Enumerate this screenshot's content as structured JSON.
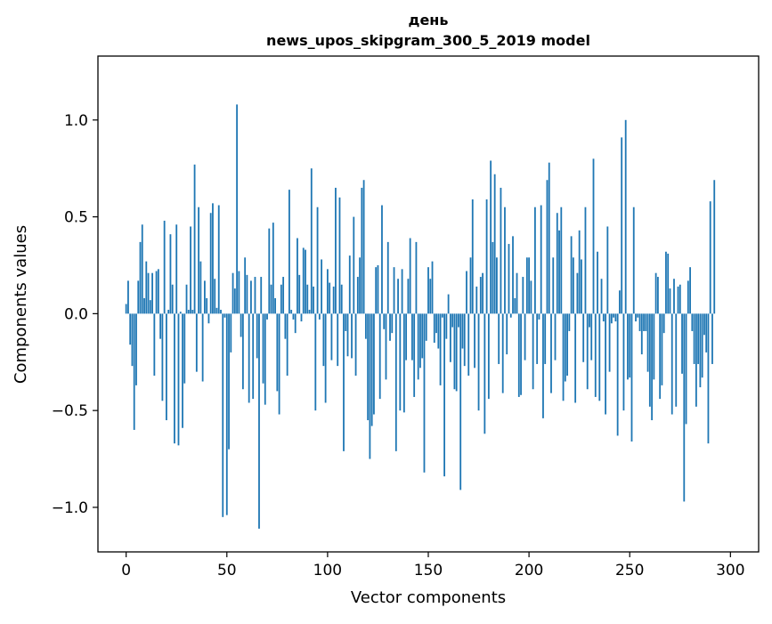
{
  "chart_data": {
    "type": "bar",
    "title": "день",
    "subtitle": "news_upos_skipgram_300_5_2019 model",
    "xlabel": "Vector components",
    "ylabel": "Components values",
    "xlim": [
      -14,
      314
    ],
    "ylim": [
      -1.23,
      1.33
    ],
    "xticks": [
      0,
      50,
      100,
      150,
      200,
      250,
      300
    ],
    "xtick_labels": [
      "0",
      "50",
      "100",
      "150",
      "200",
      "250",
      "300"
    ],
    "yticks": [
      1.0,
      0.5,
      0.0,
      -0.5,
      -1.0
    ],
    "ytick_labels": [
      "1.0",
      "0.5",
      "0.0",
      "−0.5",
      "−1.0"
    ],
    "grid": false,
    "bar_color": "#1f77b4",
    "x_start": 0,
    "values": [
      0.05,
      0.17,
      -0.16,
      -0.27,
      -0.6,
      -0.37,
      0.17,
      0.37,
      0.46,
      0.08,
      0.27,
      0.21,
      0.07,
      0.21,
      -0.32,
      0.22,
      0.23,
      -0.13,
      -0.45,
      0.48,
      -0.55,
      0.02,
      0.41,
      0.15,
      -0.67,
      0.46,
      -0.68,
      0.01,
      -0.59,
      -0.36,
      0.15,
      0.02,
      0.45,
      0.02,
      0.77,
      -0.3,
      0.55,
      0.27,
      -0.35,
      0.17,
      0.08,
      -0.05,
      0.52,
      0.57,
      0.18,
      0.03,
      0.56,
      0.02,
      -1.05,
      -0.02,
      -1.04,
      -0.7,
      -0.2,
      0.21,
      0.13,
      1.08,
      0.22,
      -0.12,
      -0.39,
      0.29,
      0.2,
      -0.46,
      0.17,
      -0.44,
      0.19,
      -0.23,
      -1.11,
      0.19,
      -0.36,
      -0.47,
      -0.03,
      0.44,
      0.15,
      0.47,
      0.08,
      -0.4,
      -0.52,
      0.15,
      0.19,
      -0.13,
      -0.32,
      0.64,
      0.02,
      -0.03,
      -0.1,
      0.39,
      0.2,
      -0.04,
      0.34,
      0.33,
      0.15,
      0.02,
      0.75,
      0.14,
      -0.5,
      0.55,
      -0.03,
      0.28,
      -0.27,
      -0.46,
      0.23,
      0.16,
      -0.24,
      0.14,
      0.65,
      -0.27,
      0.6,
      0.15,
      -0.71,
      -0.09,
      -0.22,
      0.3,
      -0.23,
      0.5,
      -0.32,
      0.19,
      0.29,
      0.65,
      0.69,
      -0.13,
      -0.55,
      -0.75,
      -0.58,
      -0.52,
      0.24,
      0.25,
      -0.44,
      0.56,
      -0.08,
      -0.34,
      0.37,
      -0.14,
      -0.1,
      0.24,
      -0.71,
      0.18,
      -0.5,
      0.23,
      -0.51,
      -0.24,
      0.18,
      0.39,
      -0.24,
      -0.43,
      0.37,
      -0.34,
      -0.28,
      -0.23,
      -0.82,
      -0.14,
      0.24,
      0.18,
      0.27,
      -0.15,
      -0.1,
      -0.18,
      -0.37,
      -0.02,
      -0.84,
      -0.13,
      0.1,
      -0.25,
      -0.07,
      -0.39,
      -0.4,
      -0.07,
      -0.91,
      -0.18,
      -0.27,
      0.22,
      -0.32,
      0.29,
      0.59,
      -0.28,
      0.14,
      -0.5,
      0.19,
      0.21,
      -0.62,
      0.59,
      -0.44,
      0.79,
      0.37,
      0.72,
      0.29,
      -0.26,
      0.65,
      -0.41,
      0.55,
      -0.21,
      0.36,
      -0.02,
      0.4,
      0.08,
      0.21,
      -0.43,
      -0.42,
      0.19,
      -0.24,
      0.29,
      0.29,
      0.17,
      -0.39,
      0.55,
      -0.26,
      -0.03,
      0.56,
      -0.54,
      -0.26,
      0.69,
      0.78,
      -0.41,
      0.29,
      -0.24,
      0.52,
      0.43,
      0.55,
      -0.45,
      -0.35,
      -0.32,
      -0.09,
      0.4,
      0.29,
      -0.46,
      0.21,
      0.43,
      0.28,
      -0.25,
      0.55,
      -0.39,
      -0.07,
      -0.24,
      0.8,
      -0.43,
      0.32,
      -0.45,
      0.18,
      -0.04,
      -0.52,
      0.45,
      -0.3,
      -0.05,
      -0.02,
      -0.04,
      -0.63,
      0.12,
      0.91,
      -0.5,
      1.0,
      -0.34,
      -0.33,
      -0.66,
      0.55,
      -0.04,
      -0.02,
      -0.09,
      -0.21,
      -0.09,
      -0.09,
      -0.3,
      -0.48,
      -0.55,
      -0.34,
      0.21,
      0.19,
      -0.44,
      -0.37,
      -0.1,
      0.32,
      0.31,
      0.13,
      -0.52,
      0.18,
      -0.48,
      0.14,
      0.15,
      -0.31,
      -0.97,
      -0.57,
      0.17,
      0.24,
      -0.09,
      -0.26,
      -0.48,
      -0.26,
      -0.38,
      -0.33,
      -0.11,
      -0.2,
      -0.67,
      0.58,
      -0.26,
      0.69
    ]
  }
}
